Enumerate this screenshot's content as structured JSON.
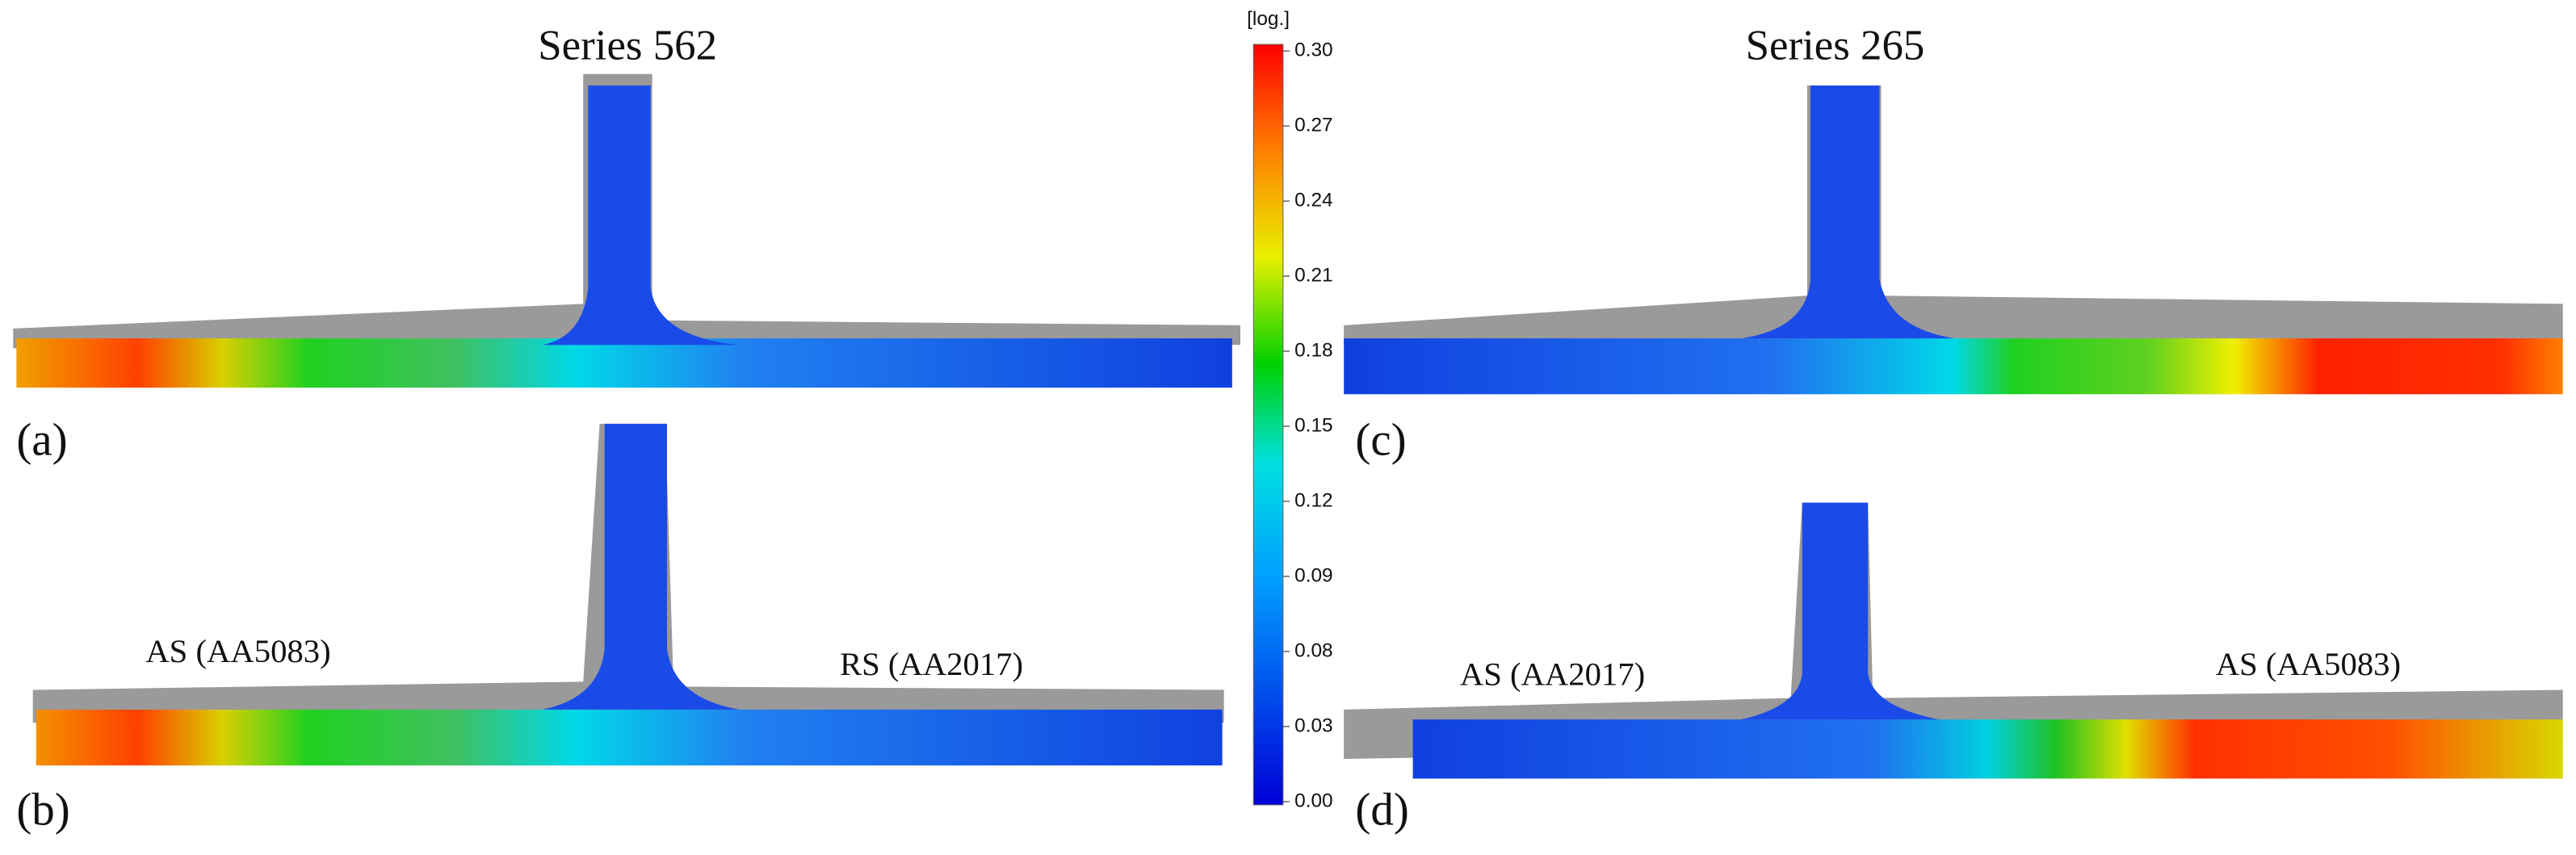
{
  "titles": [
    "Series 562",
    "Series 265"
  ],
  "panel_labels": [
    "(a)",
    "(b)",
    "(c)",
    "(d)"
  ],
  "annotations": [
    "AS (AA5083)",
    "RS (AA2017)",
    "AS (AA2017)",
    "AS (AA5083)"
  ],
  "colorbar": {
    "unit": "[log.]",
    "ticks": [
      {
        "value": 0.3,
        "label": "0.30"
      },
      {
        "value": 0.27,
        "label": "0.27"
      },
      {
        "value": 0.24,
        "label": "0.24"
      },
      {
        "value": 0.21,
        "label": "0.21"
      },
      {
        "value": 0.18,
        "label": "0.18"
      },
      {
        "value": 0.15,
        "label": "0.15"
      },
      {
        "value": 0.12,
        "label": "0.12"
      },
      {
        "value": 0.09,
        "label": "0.09"
      },
      {
        "value": 0.08,
        "label": "0.08"
      },
      {
        "value": 0.03,
        "label": "0.03"
      },
      {
        "value": 0,
        "label": "0.00"
      }
    ]
  }
}
